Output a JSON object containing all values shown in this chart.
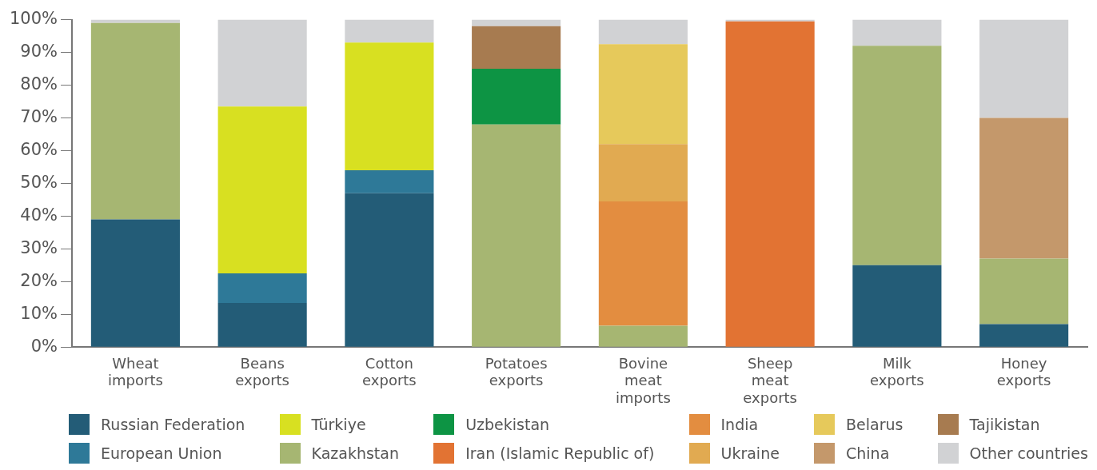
{
  "chart_data": {
    "type": "bar",
    "stacked": true,
    "categories": [
      "Wheat imports",
      "Beans exports",
      "Cotton exports",
      "Potatoes exports",
      "Bovine meat imports",
      "Sheep meat exports",
      "Milk exports",
      "Honey exports"
    ],
    "ylim": [
      0,
      100
    ],
    "yticks": [
      {
        "value": 0,
        "label": "0%"
      },
      {
        "value": 10,
        "label": "10%"
      },
      {
        "value": 20,
        "label": "20%"
      },
      {
        "value": 30,
        "label": "30%"
      },
      {
        "value": 40,
        "label": "40%"
      },
      {
        "value": 50,
        "label": "50%"
      },
      {
        "value": 60,
        "label": "60%"
      },
      {
        "value": 70,
        "label": "70%"
      },
      {
        "value": 80,
        "label": "80%"
      },
      {
        "value": 90,
        "label": "90%"
      },
      {
        "value": 100,
        "label": "100%"
      }
    ],
    "grid": false,
    "legend": "bottom",
    "series": [
      {
        "name": "Russian Federation",
        "color": "#235c77",
        "values": [
          39,
          13.5,
          47,
          null,
          null,
          null,
          25,
          7
        ]
      },
      {
        "name": "European Union",
        "color": "#2e7998",
        "values": [
          null,
          9,
          7,
          null,
          null,
          null,
          null,
          null
        ]
      },
      {
        "name": "Türkiye",
        "color": "#d8e021",
        "values": [
          null,
          51,
          39,
          null,
          null,
          null,
          null,
          null
        ]
      },
      {
        "name": "Kazakhstan",
        "color": "#a6b672",
        "values": [
          60,
          null,
          null,
          68,
          6.5,
          null,
          67,
          20
        ]
      },
      {
        "name": "Uzbekistan",
        "color": "#0d9444",
        "values": [
          null,
          null,
          null,
          17,
          null,
          null,
          null,
          null
        ]
      },
      {
        "name": "Iran (Islamic Republic of)",
        "color": "#e27333",
        "values": [
          null,
          null,
          null,
          null,
          null,
          99.5,
          null,
          null
        ]
      },
      {
        "name": "India",
        "color": "#e38d40",
        "values": [
          null,
          null,
          null,
          null,
          38,
          null,
          null,
          null
        ]
      },
      {
        "name": "Ukraine",
        "color": "#e1aa51",
        "values": [
          null,
          null,
          null,
          null,
          17.5,
          null,
          null,
          null
        ]
      },
      {
        "name": "Belarus",
        "color": "#e6c95b",
        "values": [
          null,
          null,
          null,
          null,
          30.5,
          null,
          null,
          null
        ]
      },
      {
        "name": "China",
        "color": "#c4986b",
        "values": [
          null,
          null,
          null,
          null,
          null,
          null,
          null,
          43
        ]
      },
      {
        "name": "Tajikistan",
        "color": "#a77b50",
        "values": [
          null,
          null,
          null,
          13,
          null,
          null,
          null,
          null
        ]
      },
      {
        "name": "Other countries",
        "color": "#d1d2d4",
        "values": [
          1,
          26.5,
          7,
          2,
          7.5,
          0.5,
          8,
          30
        ]
      }
    ]
  }
}
